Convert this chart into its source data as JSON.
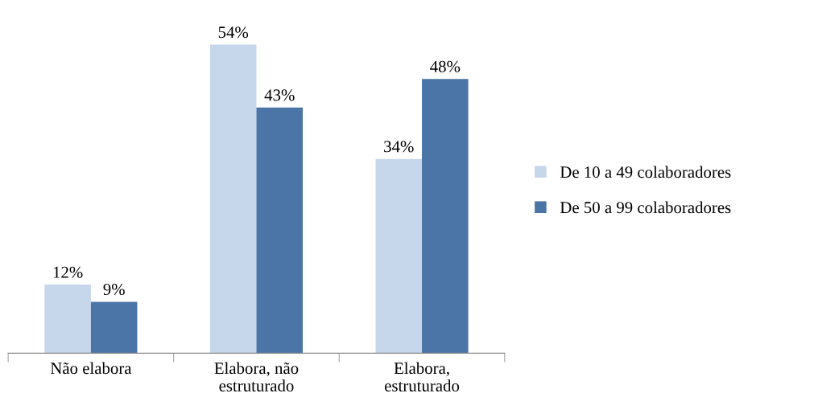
{
  "chart_data": {
    "type": "bar",
    "categories": [
      "Não elabora",
      "Elabora, não\nestruturado",
      "Elabora,\nestruturado"
    ],
    "series": [
      {
        "name": "De 10 a 49 colaboradores",
        "color": "#c6d7ec",
        "values": [
          12,
          54,
          34
        ],
        "value_labels": [
          "12%",
          "54%",
          "34%"
        ]
      },
      {
        "name": "De 50 a 99 colaboradores",
        "color": "#4a75a6",
        "values": [
          9,
          43,
          48
        ],
        "value_labels": [
          "9%",
          "43%",
          "48%"
        ]
      }
    ],
    "legend": "right",
    "grid": false
  }
}
